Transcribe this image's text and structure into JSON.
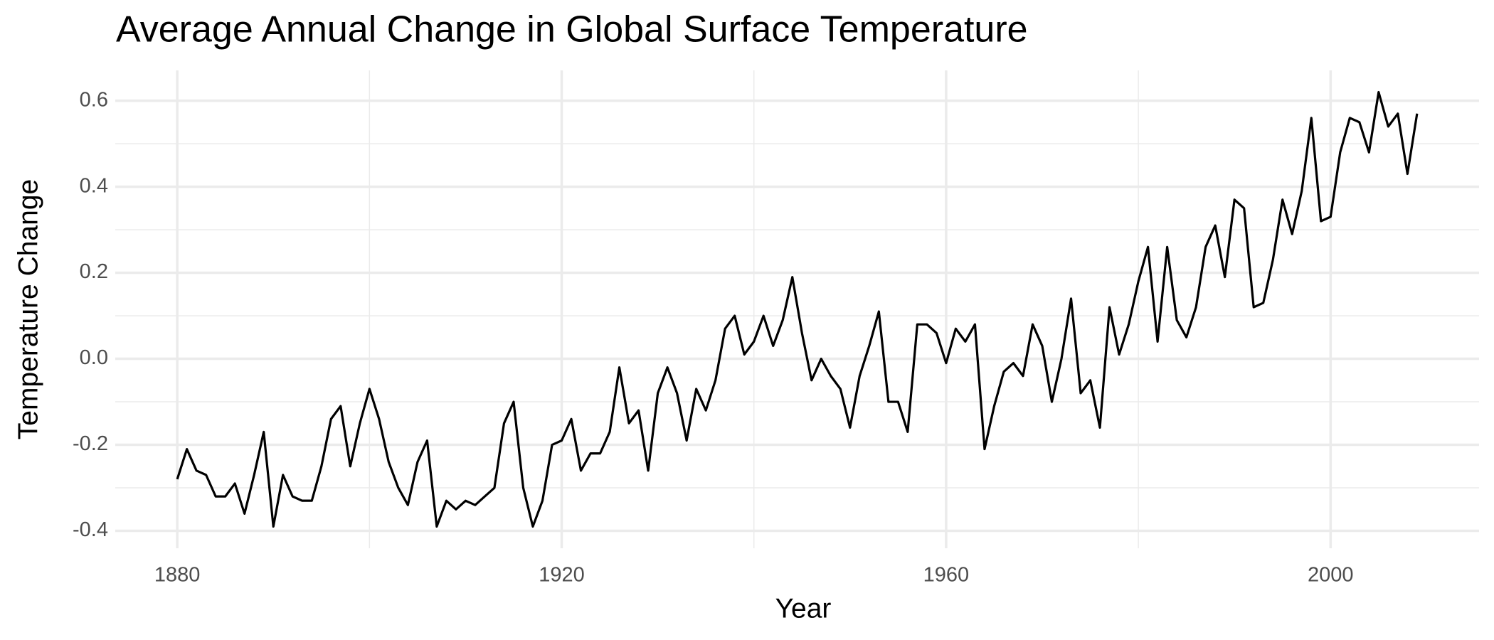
{
  "chart_data": {
    "type": "line",
    "title": "Average Annual Change in Global Surface Temperature",
    "x_label": "Year",
    "y_label": "Temperature Change",
    "x": [
      1880,
      1881,
      1882,
      1883,
      1884,
      1885,
      1886,
      1887,
      1888,
      1889,
      1890,
      1891,
      1892,
      1893,
      1894,
      1895,
      1896,
      1897,
      1898,
      1899,
      1900,
      1901,
      1902,
      1903,
      1904,
      1905,
      1906,
      1907,
      1908,
      1909,
      1910,
      1911,
      1912,
      1913,
      1914,
      1915,
      1916,
      1917,
      1918,
      1919,
      1920,
      1921,
      1922,
      1923,
      1924,
      1925,
      1926,
      1927,
      1928,
      1929,
      1930,
      1931,
      1932,
      1933,
      1934,
      1935,
      1936,
      1937,
      1938,
      1939,
      1940,
      1941,
      1942,
      1943,
      1944,
      1945,
      1946,
      1947,
      1948,
      1949,
      1950,
      1951,
      1952,
      1953,
      1954,
      1955,
      1956,
      1957,
      1958,
      1959,
      1960,
      1961,
      1962,
      1963,
      1964,
      1965,
      1966,
      1967,
      1968,
      1969,
      1970,
      1971,
      1972,
      1973,
      1974,
      1975,
      1976,
      1977,
      1978,
      1979,
      1980,
      1981,
      1982,
      1983,
      1984,
      1985,
      1986,
      1987,
      1988,
      1989,
      1990,
      1991,
      1992,
      1993,
      1994,
      1995,
      1996,
      1997,
      1998,
      1999,
      2000,
      2001,
      2002,
      2003,
      2004,
      2005,
      2006,
      2007,
      2008,
      2009
    ],
    "series": [
      {
        "name": "Temperature Change",
        "color": "#000000",
        "values": [
          -0.28,
          -0.21,
          -0.26,
          -0.27,
          -0.32,
          -0.32,
          -0.29,
          -0.36,
          -0.27,
          -0.17,
          -0.39,
          -0.27,
          -0.32,
          -0.33,
          -0.33,
          -0.25,
          -0.14,
          -0.11,
          -0.25,
          -0.15,
          -0.07,
          -0.14,
          -0.24,
          -0.3,
          -0.34,
          -0.24,
          -0.19,
          -0.39,
          -0.33,
          -0.35,
          -0.33,
          -0.34,
          -0.32,
          -0.3,
          -0.15,
          -0.1,
          -0.3,
          -0.39,
          -0.33,
          -0.2,
          -0.19,
          -0.14,
          -0.26,
          -0.22,
          -0.22,
          -0.17,
          -0.02,
          -0.15,
          -0.12,
          -0.26,
          -0.08,
          -0.02,
          -0.08,
          -0.19,
          -0.07,
          -0.12,
          -0.05,
          0.07,
          0.1,
          0.01,
          0.04,
          0.1,
          0.03,
          0.09,
          0.19,
          0.06,
          -0.05,
          0.0,
          -0.04,
          -0.07,
          -0.16,
          -0.04,
          0.03,
          0.11,
          -0.1,
          -0.1,
          -0.17,
          0.08,
          0.08,
          0.06,
          -0.01,
          0.07,
          0.04,
          0.08,
          -0.21,
          -0.11,
          -0.03,
          -0.01,
          -0.04,
          0.08,
          0.03,
          -0.1,
          0.0,
          0.14,
          -0.08,
          -0.05,
          -0.16,
          0.12,
          0.01,
          0.08,
          0.18,
          0.26,
          0.04,
          0.26,
          0.09,
          0.05,
          0.12,
          0.26,
          0.31,
          0.19,
          0.37,
          0.35,
          0.12,
          0.13,
          0.23,
          0.37,
          0.29,
          0.39,
          0.56,
          0.32,
          0.33,
          0.48,
          0.56,
          0.55,
          0.48,
          0.62,
          0.54,
          0.57,
          0.43,
          0.57
        ]
      }
    ],
    "xlim": [
      1873.55,
      2015.45
    ],
    "ylim": [
      -0.4405,
      0.6705
    ],
    "xticks": [
      1880,
      1920,
      1960,
      2000
    ],
    "yticks": [
      {
        "value": -0.4,
        "label": "-0.4"
      },
      {
        "value": -0.2,
        "label": "-0.2"
      },
      {
        "value": 0,
        "label": "0.0"
      },
      {
        "value": 0.2,
        "label": "0.2"
      },
      {
        "value": 0.4,
        "label": "0.4"
      },
      {
        "value": 0.6,
        "label": "0.6"
      }
    ],
    "xminorticks": [
      1900,
      1940,
      1980
    ],
    "yminorticks": [
      -0.3,
      -0.1,
      0.1,
      0.3,
      0.5
    ],
    "grid": true
  }
}
